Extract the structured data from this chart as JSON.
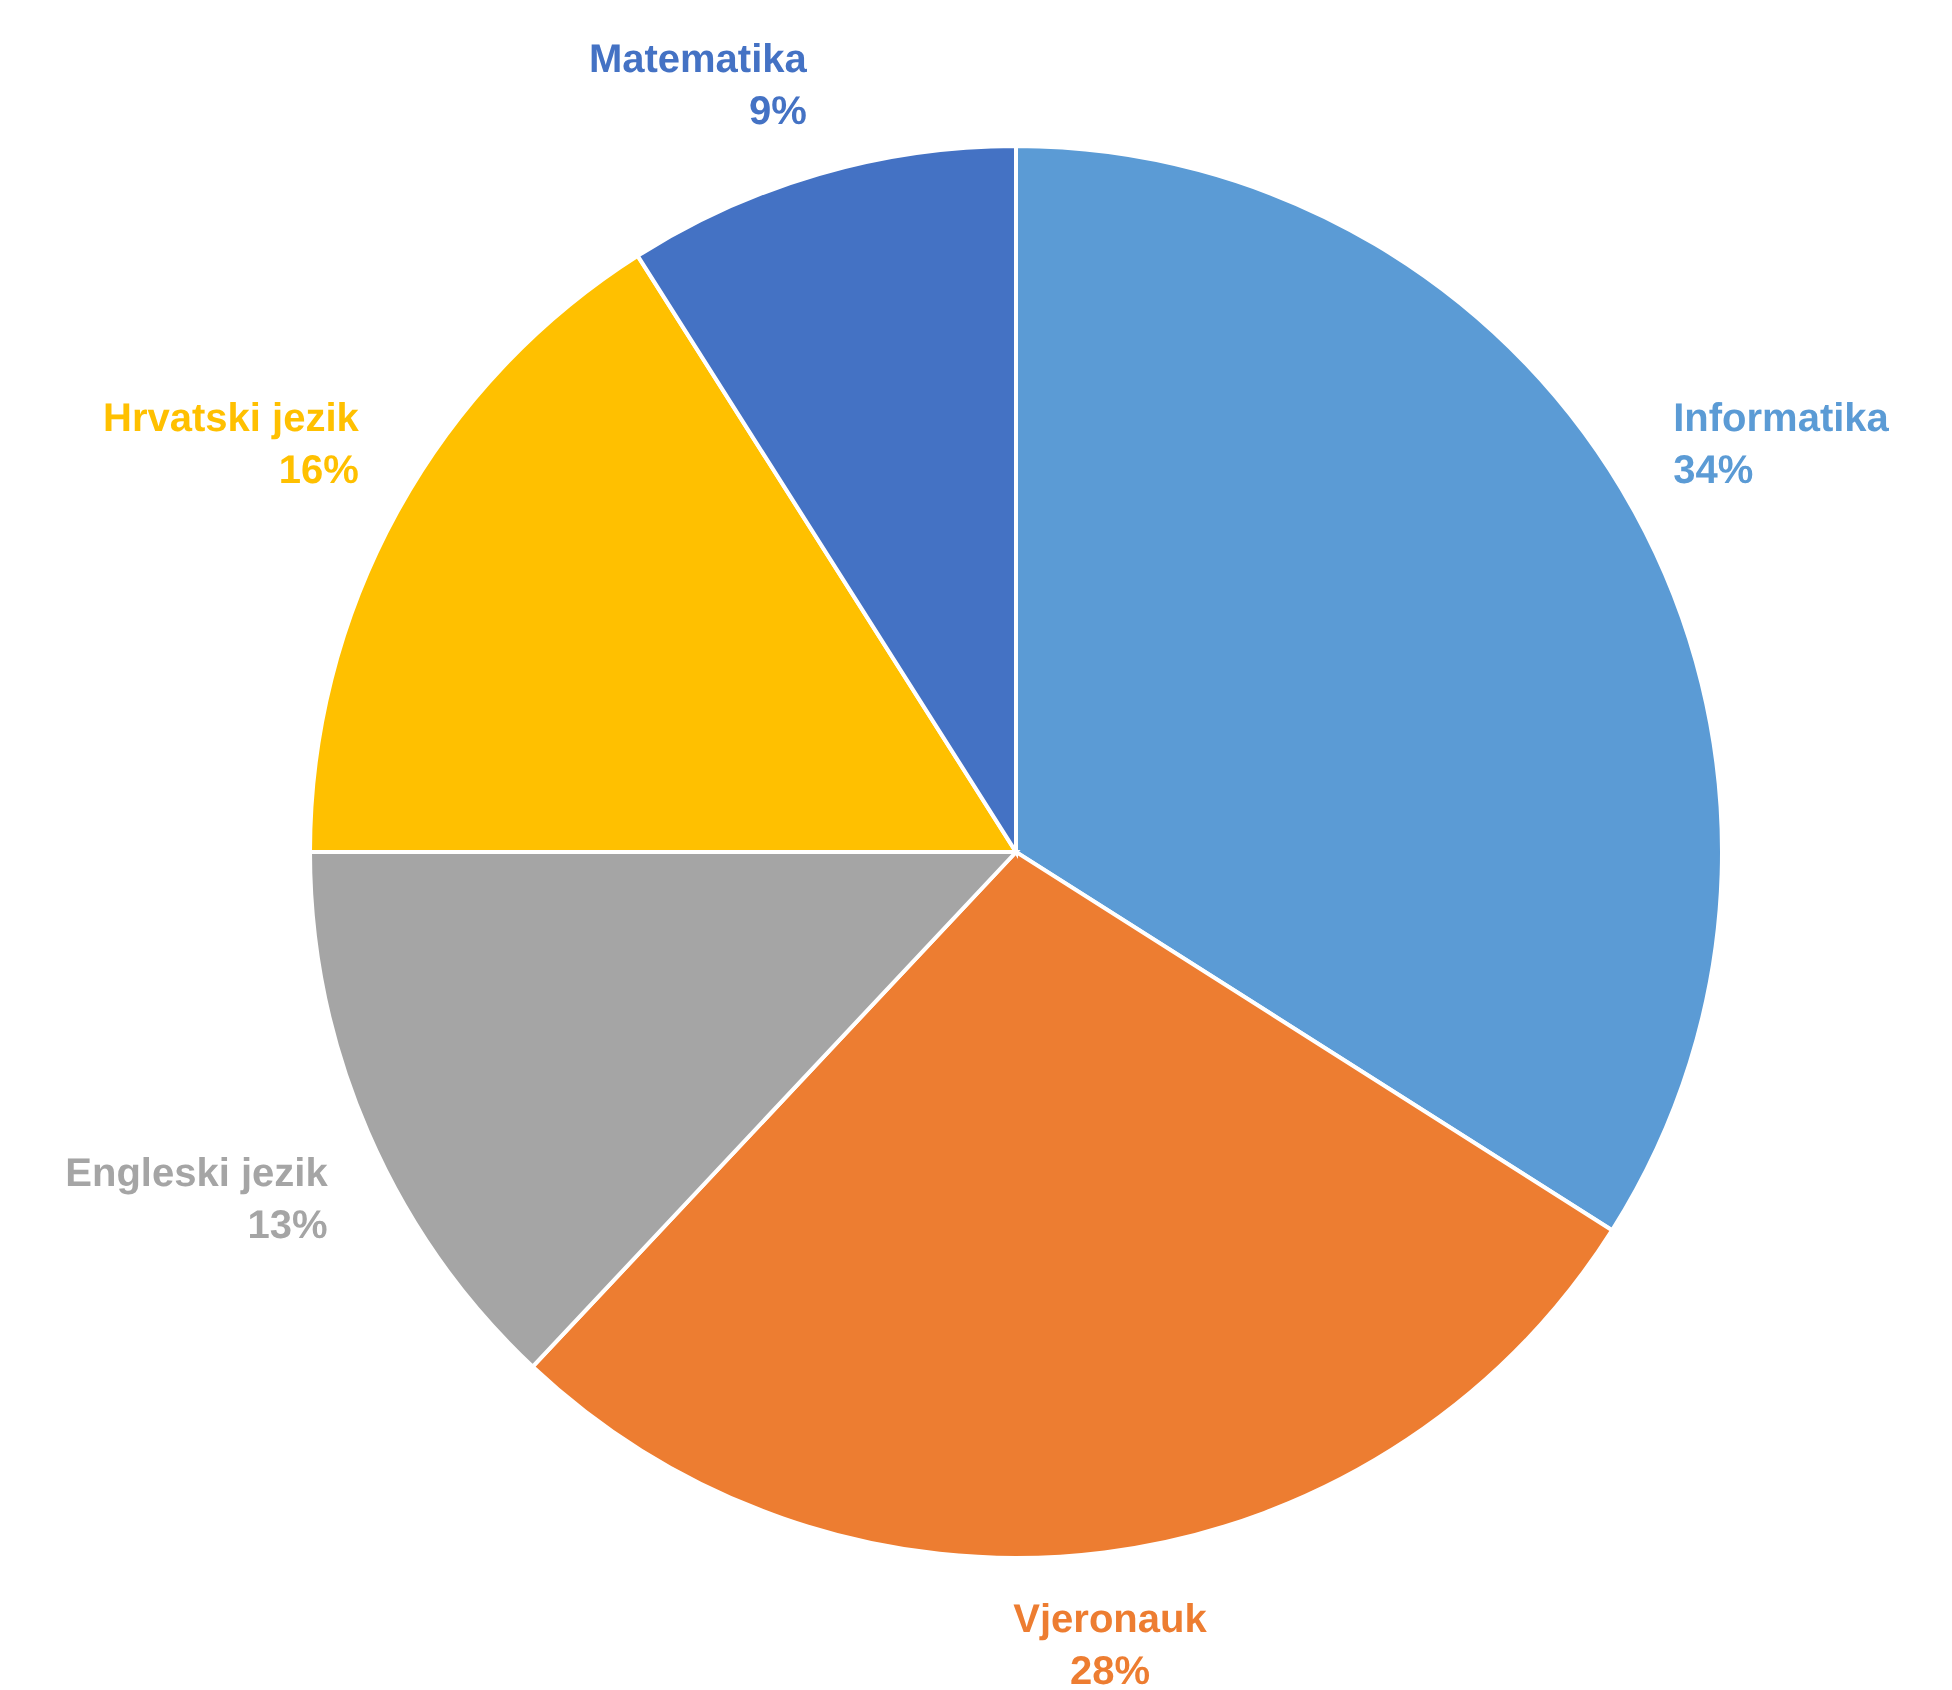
{
  "chart_data": {
    "type": "pie",
    "categories": [
      "Informatika",
      "Vjeronauk",
      "Engleski jezik",
      "Hrvatski jezik",
      "Matematika"
    ],
    "values": [
      34,
      28,
      13,
      16,
      9
    ],
    "colors": [
      "#5b9bd5",
      "#ed7d31",
      "#a5a5a5",
      "#ffc000",
      "#4472c4"
    ],
    "value_labels": [
      "34%",
      "28%",
      "13%",
      "16%",
      "9%"
    ]
  }
}
